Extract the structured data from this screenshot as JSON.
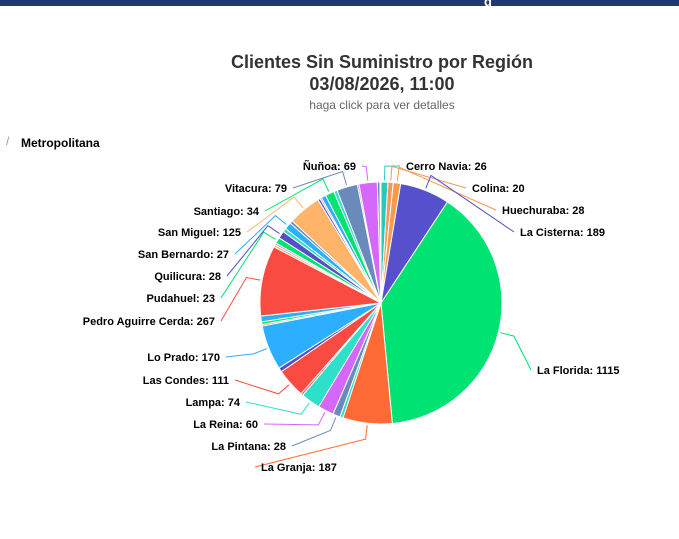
{
  "header": {
    "glyph": "ɡ"
  },
  "title_line1": "Clientes Sin Suministro por Región",
  "title_line2": "03/08/2026, 11:00",
  "subtitle": "haga click para ver detalles",
  "breadcrumb": {
    "separator": "/",
    "label": "Metropolitana"
  },
  "chart_data": {
    "type": "pie",
    "slices": [
      {
        "name": "Cerro Navia",
        "value": 26,
        "color": "#2ac9b6",
        "label": "Cerro Navia: 26"
      },
      {
        "name": "Colina",
        "value": 20,
        "color": "#ef9a5c",
        "label": "Colina: 20"
      },
      {
        "name": "Huechuraba",
        "value": 28,
        "color": "#f59b4a",
        "label": "Huechuraba: 28"
      },
      {
        "name": "La Cisterna",
        "value": 189,
        "color": "#5750cc",
        "label": "La Cisterna: 189"
      },
      {
        "name": "La Florida",
        "value": 1115,
        "color": "#00e272",
        "label": "La Florida: 1115"
      },
      {
        "name": "La Granja",
        "value": 187,
        "color": "#fe6a35",
        "label": "La Granja: 187"
      },
      {
        "name": "La Pintana",
        "value": 28,
        "color": "#6b8abc",
        "label": "La Pintana: 28"
      },
      {
        "name": "La Reina",
        "value": 60,
        "color": "#d568fb",
        "label": "La Reina: 60"
      },
      {
        "name": "Lampa",
        "value": 74,
        "color": "#2ee0ca",
        "label": "Lampa: 74"
      },
      {
        "name": "Las Condes",
        "value": 111,
        "color": "#fa4b42",
        "label": "Las Condes: 111"
      },
      {
        "name": "Lo Prado",
        "value": 170,
        "color": "#2caffe",
        "label": "Lo Prado: 170"
      },
      {
        "name": "Pedro Aguirre Cerda",
        "value": 267,
        "color": "#fa4b42",
        "label": "Pedro Aguirre Cerda: 267"
      },
      {
        "name": "Pudahuel",
        "value": 23,
        "color": "#00e272",
        "label": "Pudahuel: 23"
      },
      {
        "name": "Quilicura",
        "value": 28,
        "color": "#544fc5",
        "label": "Quilicura: 28"
      },
      {
        "name": "San Bernardo",
        "value": 27,
        "color": "#2caffe",
        "label": "San Bernardo: 27"
      },
      {
        "name": "San Miguel",
        "value": 125,
        "color": "#feb56a",
        "label": "San Miguel: 125"
      },
      {
        "name": "Santiago",
        "value": 34,
        "color": "#00e272",
        "label": "Santiago: 34"
      },
      {
        "name": "Vitacura",
        "value": 79,
        "color": "#6b8abc",
        "label": "Vitacura: 79"
      },
      {
        "name": "Ñuñoa",
        "value": 69,
        "color": "#d568fb",
        "label": "Ñuñoa: 69"
      }
    ],
    "unlabeled_slices": [
      {
        "value": 12,
        "color": "#2ee0ca"
      },
      {
        "value": 8,
        "color": "#fa4b42"
      },
      {
        "value": 16,
        "color": "#544fc5"
      },
      {
        "value": 6,
        "color": "#fe6a35"
      },
      {
        "value": 10,
        "color": "#00e272"
      },
      {
        "value": 22,
        "color": "#2caffe"
      },
      {
        "value": 9,
        "color": "#feb56a"
      },
      {
        "value": 7,
        "color": "#d568fb"
      },
      {
        "value": 14,
        "color": "#2ee0ca"
      },
      {
        "value": 11,
        "color": "#6b8abc"
      },
      {
        "value": 9,
        "color": "#544fc5"
      },
      {
        "value": 6,
        "color": "#fe6a35"
      },
      {
        "value": 18,
        "color": "#2caffe"
      },
      {
        "value": 13,
        "color": "#2ee0ca"
      },
      {
        "value": 6,
        "color": "#d568fb"
      },
      {
        "value": 10,
        "color": "#6b8abc"
      },
      {
        "value": 4,
        "color": "#fa4b42"
      }
    ]
  }
}
